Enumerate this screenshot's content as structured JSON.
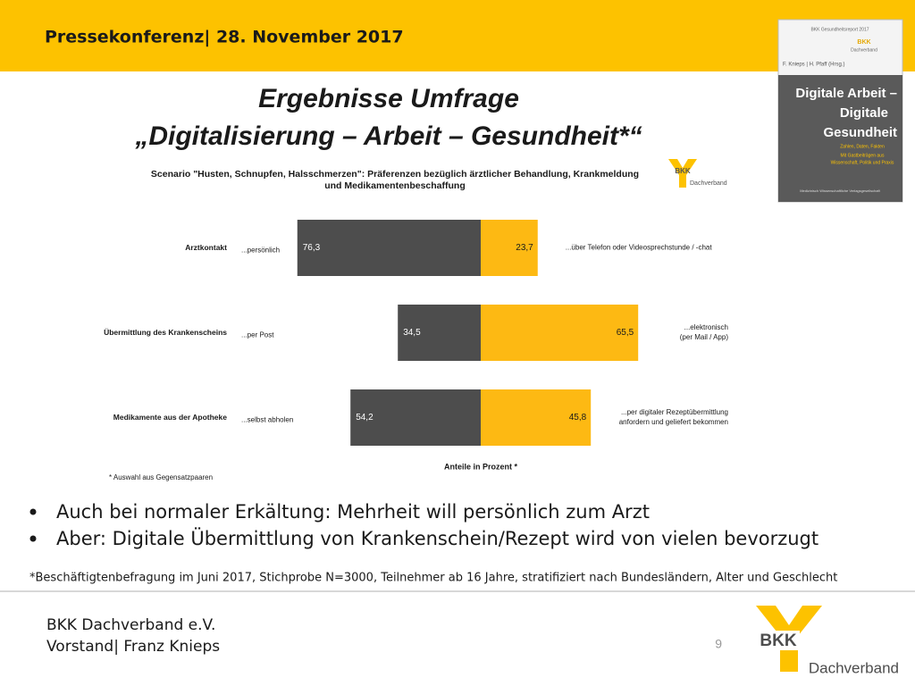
{
  "header": {
    "title": "Pressekonferenz| 28. November 2017"
  },
  "slide_title": [
    "Ergebnisse Umfrage",
    "„Digitalisierung – Arbeit – Gesundheit*“"
  ],
  "cover": {
    "series": "BKK Gesundheitsreport 2017",
    "editors": "F. Knieps | H. Pfaff (Hrsg.)",
    "title": [
      "Digitale Arbeit –",
      "Digitale",
      "Gesundheit"
    ],
    "subtitle": [
      "Zahlen, Daten, Fakten",
      "Mit Gastbeiträgen aus",
      "Wissenschaft, Politik und Praxis"
    ],
    "publisher": "Medizinisch Wissenschaftliche Verlagsgesellschaft",
    "logo": "BKK",
    "logo_sub": "Dachverband"
  },
  "chart_logo": {
    "mark": "BKK",
    "text": "Dachverband"
  },
  "chart_data": {
    "type": "diverging_bar",
    "title": [
      "Scenario \"Husten, Schnupfen, Halsschmerzen\": Präferenzen bezüglich ärztlicher Behandlung, Krankmeldung",
      "und Medikamentenbeschaffung"
    ],
    "categories": [
      "Arztkontakt",
      "Übermittlung des Krankenscheins",
      "Medikamente aus der Apotheke"
    ],
    "series": [
      {
        "color": "#4d4d4d",
        "values": [
          76.3,
          34.5,
          54.2
        ],
        "value_labels": [
          "76,3",
          "34,5",
          "54,2"
        ],
        "side_labels": [
          [
            "...persönlich"
          ],
          [
            "...per Post"
          ],
          [
            "...selbst abholen"
          ]
        ]
      },
      {
        "color": "#fdb913",
        "values": [
          23.7,
          65.5,
          45.8
        ],
        "value_labels": [
          "23,7",
          "65,5",
          "45,8"
        ],
        "side_labels": [
          [
            "...über Telefon  oder  Videosprechstunde  /  -chat"
          ],
          [
            "...elektronisch",
            "(per Mail  /  App)"
          ],
          [
            "...per digitaler  Rezeptübermittlung",
            "anfordern  und  geliefert  bekommen"
          ]
        ]
      }
    ],
    "xlabel": "Anteile   in Prozent *",
    "footnote": "* Auswahl aus Gegensatzpaaren"
  },
  "bullets": [
    "Auch bei normaler Erkältung: Mehrheit will persönlich zum Arzt",
    "Aber: Digitale Übermittlung von Krankenschein/Rezept wird von vielen bevorzugt"
  ],
  "footnote": "*Beschäftigtenbefragung im Juni 2017, Stichprobe N=3000, Teilnehmer ab 16 Jahre, stratifiziert nach Bundesländern, Alter und Geschlecht",
  "footer": {
    "lines": [
      "BKK Dachverband e.V.",
      "Vorstand| Franz Knieps"
    ],
    "page": "9",
    "logo": "BKK",
    "logo_sub": "Dachverband"
  }
}
